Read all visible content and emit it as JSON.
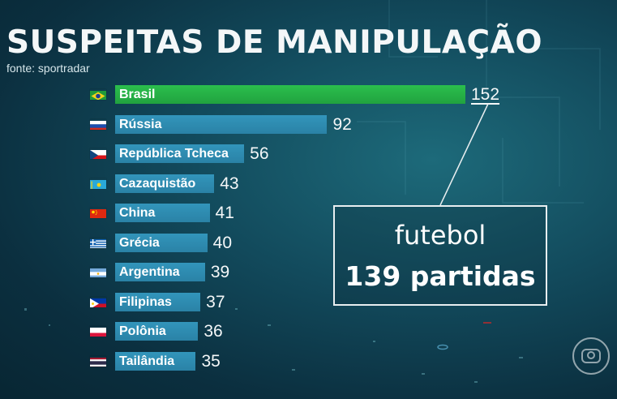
{
  "header": {
    "title": "SUSPEITAS DE MANIPULAÇÃO",
    "source": "fonte: sportradar"
  },
  "callout": {
    "sport": "futebol",
    "count": "139 partidas"
  },
  "colors": {
    "bar": "#2f8fb6",
    "highlight_bar": "#26b447",
    "background": "#124a5c"
  },
  "logo_icon": "globo-logo-icon",
  "chart_data": {
    "type": "bar",
    "orientation": "horizontal",
    "title": "SUSPEITAS DE MANIPULAÇÃO",
    "source": "fonte: sportradar",
    "categories": [
      "Brasil",
      "Rússia",
      "República Tcheca",
      "Cazaquistão",
      "China",
      "Grécia",
      "Argentina",
      "Filipinas",
      "Polônia",
      "Tailândia"
    ],
    "values": [
      152,
      92,
      56,
      43,
      41,
      40,
      39,
      37,
      36,
      35
    ],
    "flags": [
      "brazil-flag-icon",
      "russia-flag-icon",
      "czech-flag-icon",
      "kazakhstan-flag-icon",
      "china-flag-icon",
      "greece-flag-icon",
      "argentina-flag-icon",
      "philippines-flag-icon",
      "poland-flag-icon",
      "thailand-flag-icon"
    ],
    "highlighted": "Brasil"
  }
}
